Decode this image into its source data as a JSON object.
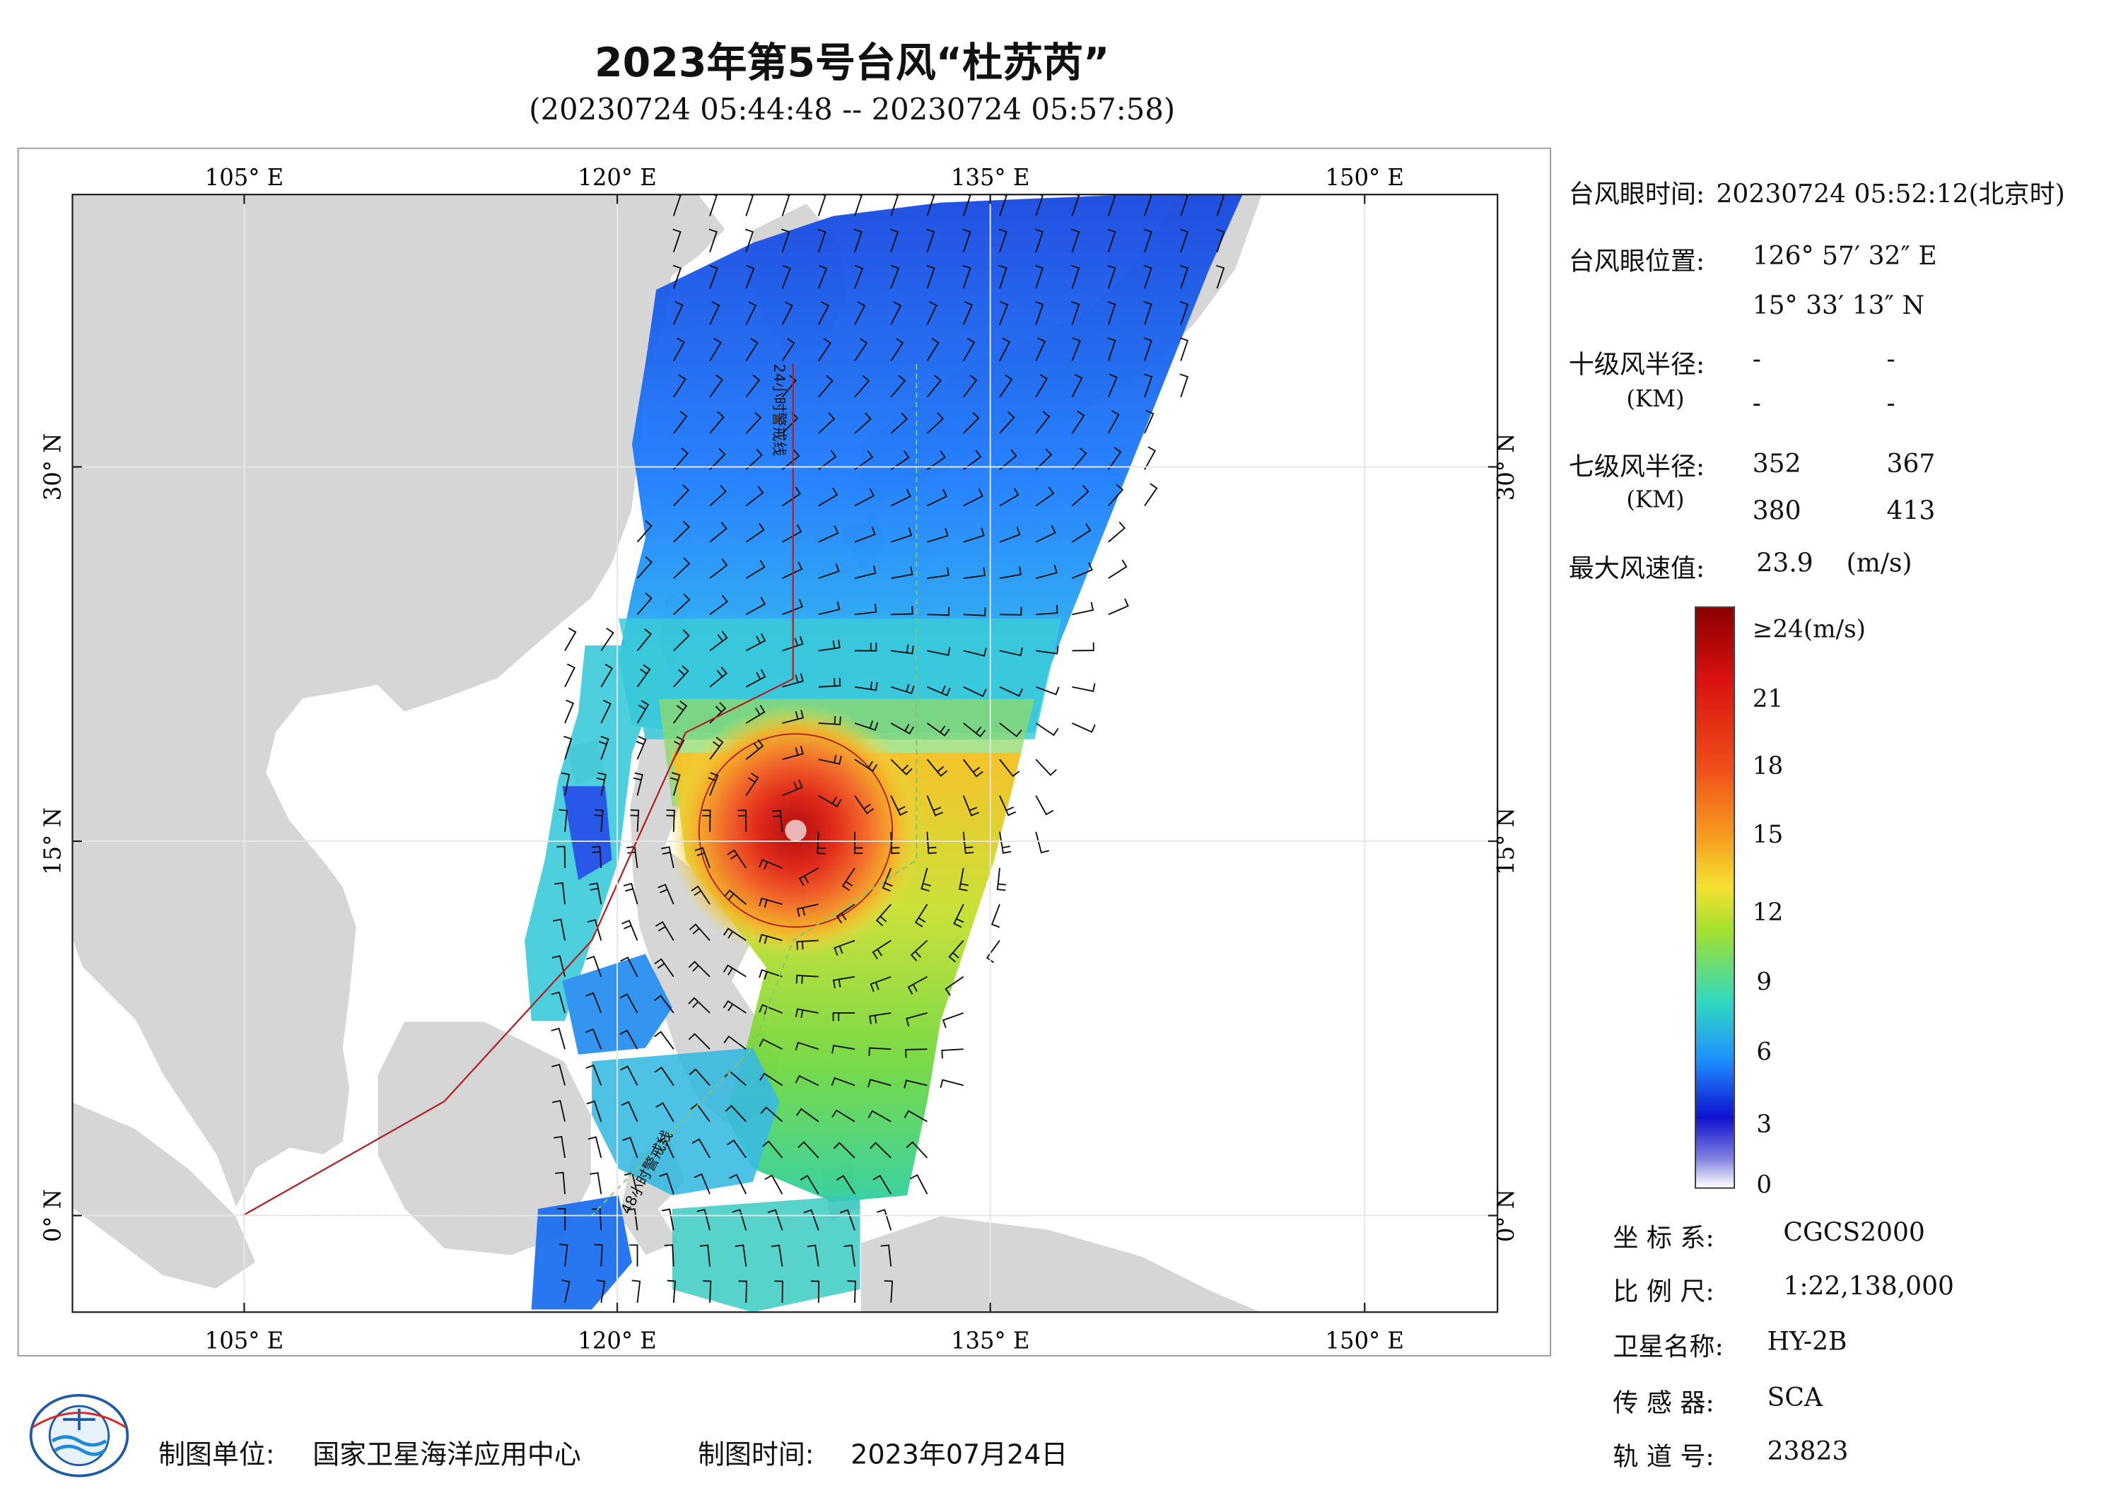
{
  "title": "2023年第5号台风“杜苏芮”",
  "time_range": "(20230724 05:44:48 -- 20230724 05:57:58)",
  "map": {
    "lon_ticks": [
      "105° E",
      "120° E",
      "135° E",
      "150° E"
    ],
    "lat_ticks": [
      "30° N",
      "15° N",
      "0° N"
    ],
    "track_labels": [
      "24小时警戒线",
      "48小时警戒线"
    ]
  },
  "info": {
    "eye_time_label": "台风眼时间:",
    "eye_time_value": "20230724 05:52:12(北京时)",
    "eye_position_label": "台风眼位置:",
    "eye_lon": "126° 57′ 32″ E",
    "eye_lat": "15° 33′ 13″ N",
    "r10_label": "十级风半径:",
    "r10_unit": "(KM)",
    "r10_values": [
      "-",
      "-",
      "-",
      "-"
    ],
    "r7_label": "七级风半径:",
    "r7_unit": "(KM)",
    "r7_values": [
      "352",
      "367",
      "380",
      "413"
    ],
    "max_wind_label": "最大风速值:",
    "max_wind_value": "23.9",
    "max_wind_unit": "(m/s)"
  },
  "legend": {
    "labels": [
      "≥24(m/s)",
      "21",
      "18",
      "15",
      "12",
      "9",
      "6",
      "3",
      "0"
    ],
    "colors": [
      "#8b0000",
      "#e03010",
      "#f57020",
      "#f5c020",
      "#a0e030",
      "#30d8c0",
      "#1e90ff",
      "#1010d0",
      "#ffffff"
    ]
  },
  "meta": {
    "crs_label": "坐 标 系:",
    "crs_value": "CGCS2000",
    "scale_label": "比 例 尺:",
    "scale_value": "1:22,138,000",
    "satellite_label": "卫星名称:",
    "satellite_value": "HY-2B",
    "sensor_label": "传 感 器:",
    "sensor_value": "SCA",
    "orbit_label": "轨 道 号:",
    "orbit_value": "23823"
  },
  "footer": {
    "org_label": "制图单位:",
    "org_value": "国家卫星海洋应用中心",
    "date_label": "制图时间:",
    "date_value": "2023年07月24日"
  },
  "colors": {
    "land": "#d6d6d6",
    "sea": "#ffffff",
    "warning_line": "#b22222",
    "track_48": "#7cc86c",
    "wind_barb": "#000000"
  }
}
